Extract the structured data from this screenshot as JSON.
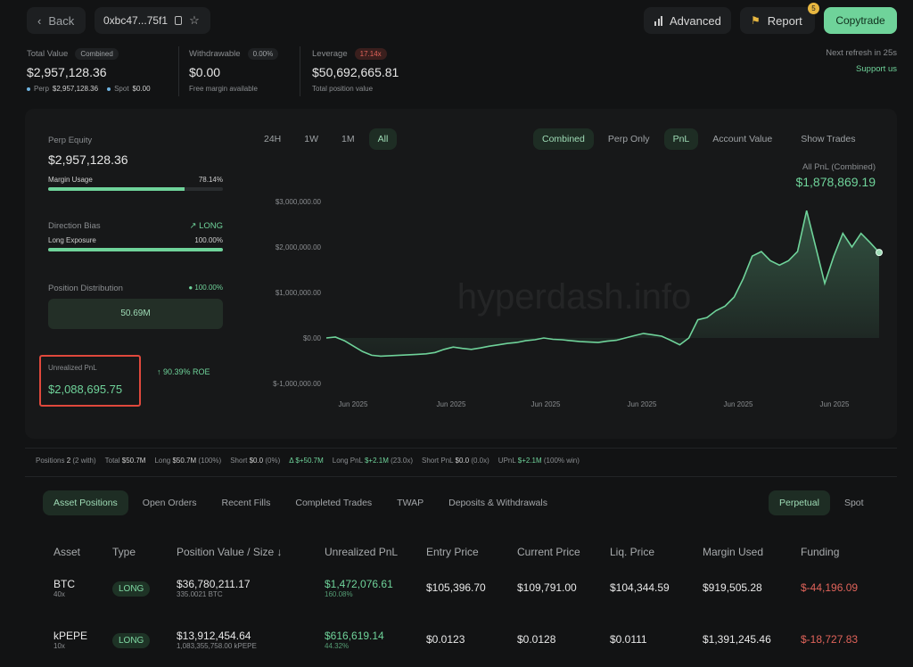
{
  "header": {
    "back_label": "Back",
    "address": "0xbc47...75f1",
    "advanced_label": "Advanced",
    "report_label": "Report",
    "report_badge": "5",
    "copytrade_label": "Copytrade",
    "refresh_text": "Next refresh in 25s",
    "support_text": "Support us"
  },
  "summary": {
    "total_value_label": "Total Value",
    "total_value_tag": "Combined",
    "total_value": "$2,957,128.36",
    "perp_label": "Perp",
    "perp_value": "$2,957,128.36",
    "spot_label": "Spot",
    "spot_value": "$0.00",
    "withdrawable_label": "Withdrawable",
    "withdrawable_pct": "0.00%",
    "withdrawable_value": "$0.00",
    "withdrawable_sub": "Free margin available",
    "leverage_label": "Leverage",
    "leverage_tag": "17.14x",
    "leverage_value": "$50,692,665.81",
    "leverage_sub": "Total position value"
  },
  "left_panel": {
    "perp_equity_label": "Perp Equity",
    "perp_equity_value": "$2,957,128.36",
    "margin_usage_label": "Margin Usage",
    "margin_usage_pct": "78.14%",
    "margin_usage_fraction": 0.7814,
    "direction_bias_label": "Direction Bias",
    "direction_bias_value": "LONG",
    "long_exposure_label": "Long Exposure",
    "long_exposure_pct": "100.00%",
    "long_exposure_fraction": 1.0,
    "position_distribution_label": "Position Distribution",
    "position_distribution_pct": "100.00%",
    "position_distribution_value": "50.69M",
    "unrealized_label": "Unrealized PnL",
    "unrealized_value": "$2,088,695.75",
    "roe_text": "90.39% ROE"
  },
  "chart_controls": {
    "ranges": [
      "24H",
      "1W",
      "1M",
      "All"
    ],
    "active_range": "All",
    "combined_label": "Combined",
    "perp_only_label": "Perp Only",
    "pnl_label": "PnL",
    "account_value_label": "Account Value",
    "show_trades_label": "Show Trades",
    "summary_label": "All PnL (Combined)",
    "summary_value": "$1,878,869.19",
    "watermark": "hyperdash.info"
  },
  "chart_data": {
    "type": "area",
    "title": "",
    "xlabel": "",
    "ylabel": "",
    "y_ticks": [
      "$3,000,000.00",
      "$2,000,000.00",
      "$1,000,000.00",
      "$0.00",
      "$-1,000,000.00"
    ],
    "x_ticks": [
      "Jun 2025",
      "Jun 2025",
      "Jun 2025",
      "Jun 2025",
      "Jun 2025",
      "Jun 2025"
    ],
    "ylim": [
      -1000000,
      3000000
    ],
    "series": [
      {
        "color": "#6fd39a",
        "values": [
          0,
          20000,
          -60000,
          -180000,
          -300000,
          -380000,
          -400000,
          -390000,
          -380000,
          -370000,
          -360000,
          -350000,
          -320000,
          -250000,
          -200000,
          -230000,
          -250000,
          -220000,
          -180000,
          -150000,
          -120000,
          -100000,
          -60000,
          -40000,
          0,
          -30000,
          -40000,
          -60000,
          -80000,
          -90000,
          -100000,
          -70000,
          -50000,
          0,
          50000,
          100000,
          70000,
          40000,
          -50000,
          -150000,
          0,
          400000,
          450000,
          600000,
          700000,
          900000,
          1300000,
          1800000,
          1900000,
          1700000,
          1600000,
          1700000,
          1900000,
          2800000,
          2000000,
          1200000,
          1800000,
          2300000,
          2000000,
          2300000,
          2100000,
          1880000
        ]
      }
    ]
  },
  "stats_strip": {
    "positions_label": "Positions",
    "positions_value": "2",
    "positions_sub": "(2 with)",
    "total_label": "Total",
    "total_value": "$50.7M",
    "long_label": "Long",
    "long_value": "$50.7M",
    "long_pct": "(100%)",
    "short_label": "Short",
    "short_value": "$0.0",
    "short_pct": "(0%)",
    "delta_label": "Δ",
    "delta_value": "$+50.7M",
    "long_pnl_label": "Long PnL",
    "long_pnl_value": "$+2.1M",
    "long_pnl_pct": "(23.0x)",
    "short_pnl_label": "Short PnL",
    "short_pnl_value": "$0.0",
    "short_pnl_pct": "(0.0x)",
    "upnl_label": "UPnL",
    "upnl_value": "$+2.1M",
    "upnl_pct": "(100% win)"
  },
  "tabs": {
    "items": [
      "Asset Positions",
      "Open Orders",
      "Recent Fills",
      "Completed Trades",
      "TWAP",
      "Deposits & Withdrawals"
    ],
    "active": "Asset Positions",
    "market_items": [
      "Perpetual",
      "Spot"
    ],
    "market_active": "Perpetual"
  },
  "table": {
    "headers": [
      "Asset",
      "Type",
      "Position Value / Size ↓",
      "Unrealized PnL",
      "Entry Price",
      "Current Price",
      "Liq. Price",
      "Margin Used",
      "Funding"
    ],
    "rows": [
      {
        "asset": "BTC",
        "lev": "40x",
        "type": "LONG",
        "value": "$36,780,211.17",
        "size": "335.0021 BTC",
        "pnl": "$1,472,076.61",
        "pnl_pct": "160.08%",
        "entry": "$105,396.70",
        "current": "$109,791.00",
        "liq": "$104,344.59",
        "margin": "$919,505.28",
        "funding": "$-44,196.09"
      },
      {
        "asset": "kPEPE",
        "lev": "10x",
        "type": "LONG",
        "value": "$13,912,454.64",
        "size": "1,083,355,758.00 kPEPE",
        "pnl": "$616,619.14",
        "pnl_pct": "44.32%",
        "entry": "$0.0123",
        "current": "$0.0128",
        "liq": "$0.0111",
        "margin": "$1,391,245.46",
        "funding": "$-18,727.83"
      }
    ]
  }
}
